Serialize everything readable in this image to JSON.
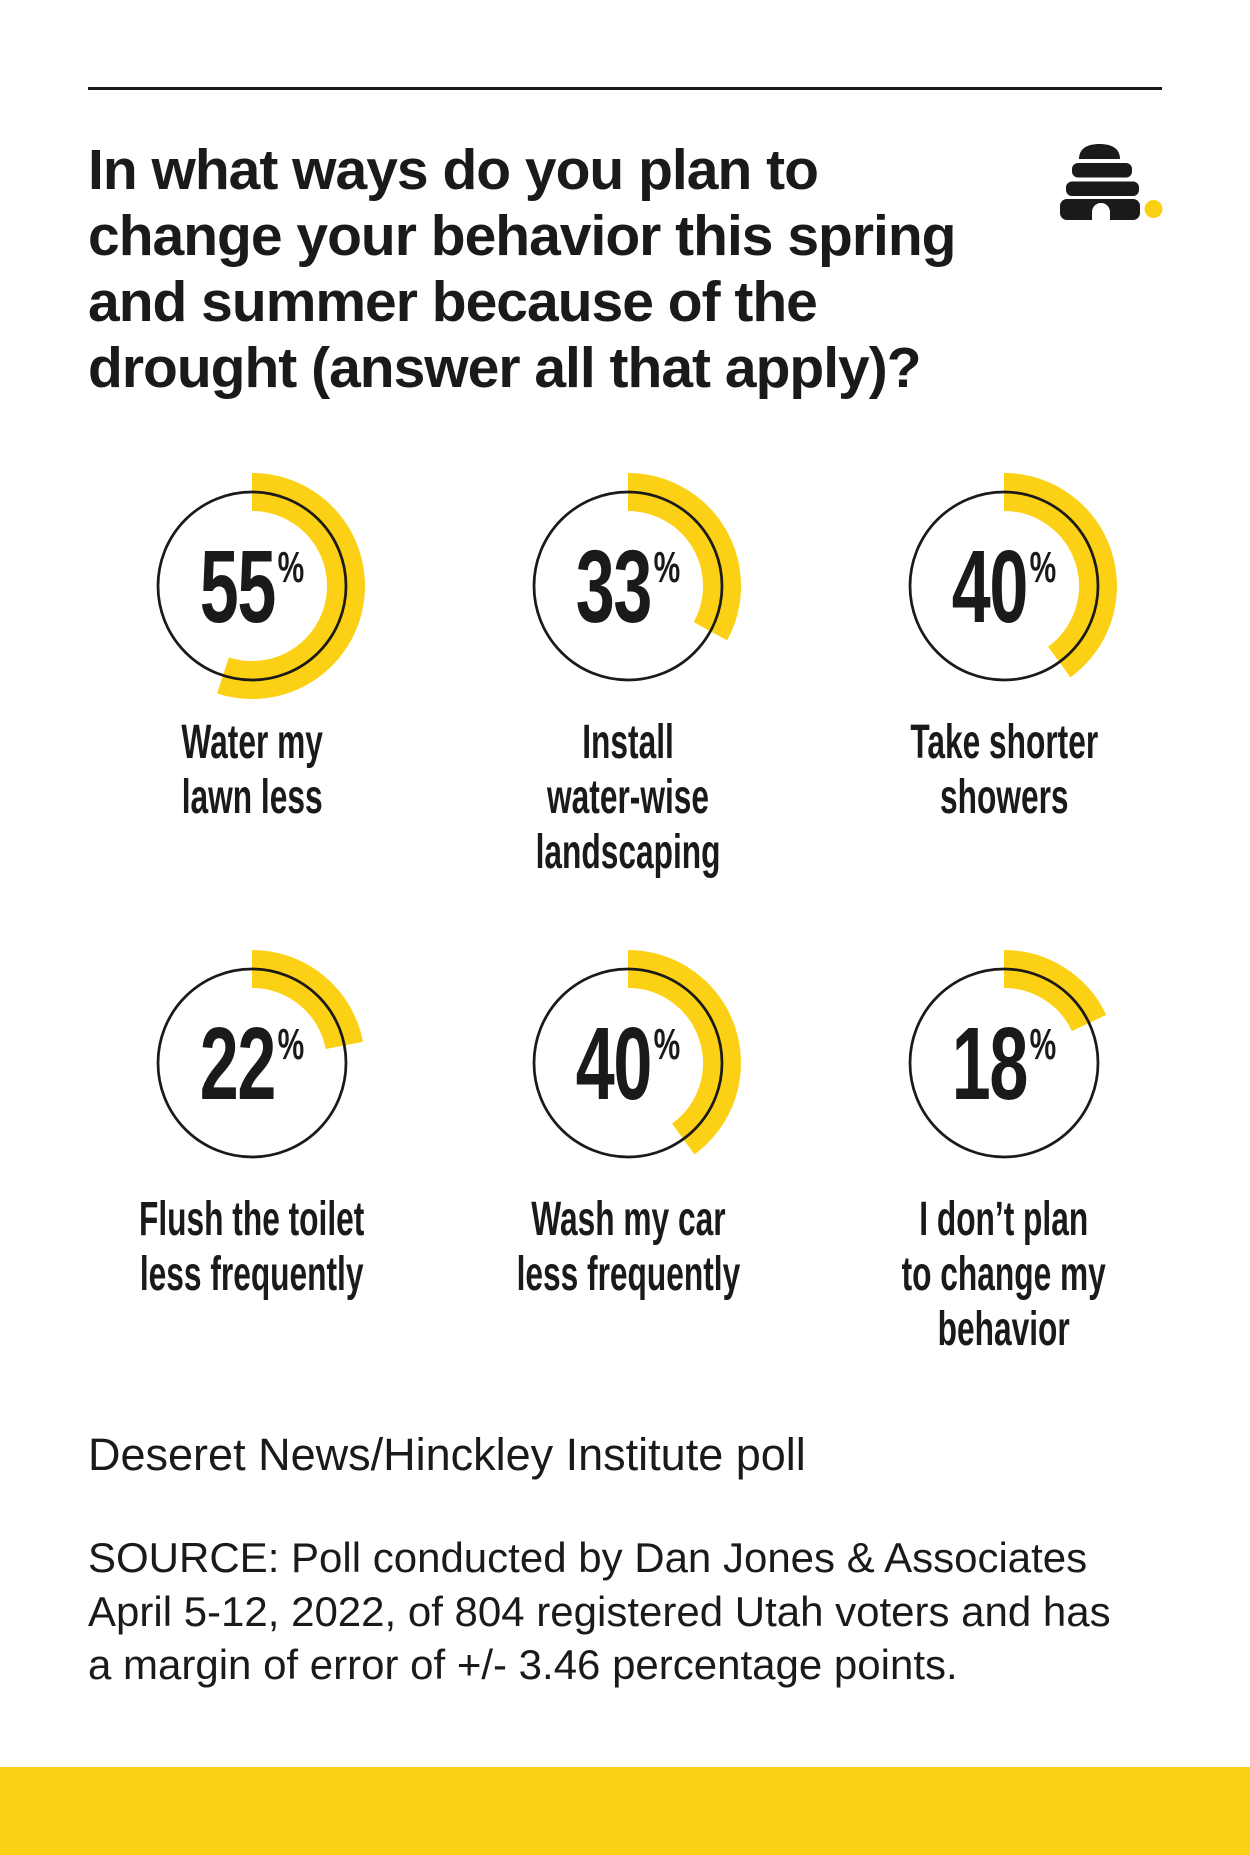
{
  "colors": {
    "accent_yellow": "#FCD015",
    "ink": "#1A1A1A",
    "background": "#FFFFFF"
  },
  "header": {
    "title": "In what ways do you plan to change your behavior this spring and summer because of the drought (answer all that apply)?",
    "title_lines": [
      "In what ways do you plan to",
      "change your behavior this spring",
      "and summer because of the",
      "drought (answer all that apply)?"
    ],
    "logo": "deseret-news-beehive"
  },
  "chart_data": {
    "type": "donut-gauge",
    "unit": "%",
    "value_range": [
      0,
      100
    ],
    "gauge_style": {
      "start_angle_deg": 0,
      "direction": "clockwise",
      "ring_color": "#FCD015",
      "outline_color": "#1A1A1A"
    },
    "items": [
      {
        "value": 55,
        "label": "Water my lawn less",
        "label_lines": [
          "Water my",
          "lawn less"
        ]
      },
      {
        "value": 33,
        "label": "Install water-wise landscaping",
        "label_lines": [
          "Install",
          "water-wise",
          "landscaping"
        ]
      },
      {
        "value": 40,
        "label": "Take shorter showers",
        "label_lines": [
          "Take shorter",
          "showers"
        ]
      },
      {
        "value": 22,
        "label": "Flush the toilet less frequently",
        "label_lines": [
          "Flush the toilet",
          "less frequently"
        ]
      },
      {
        "value": 40,
        "label": "Wash my car less frequently",
        "label_lines": [
          "Wash my car",
          "less frequently"
        ]
      },
      {
        "value": 18,
        "label": "I don’t plan to change my behavior",
        "label_lines": [
          "I don’t plan",
          "to change my",
          "behavior"
        ]
      }
    ],
    "title": "In what ways do you plan to change your behavior this spring and summer because of the drought (answer all that apply)?",
    "legend": "none",
    "grid": "off"
  },
  "footer": {
    "poll_name": "Deseret News/Hinckley Institute poll",
    "source": "SOURCE: Poll conducted by Dan Jones & Associates April 5-12, 2022, of 804 registered Utah voters and has a margin of error of +/- 3.46 percentage points.",
    "source_lines": [
      "SOURCE: Poll conducted by Dan Jones & Associates",
      "April 5-12, 2022, of 804 registered Utah voters and has",
      "a margin of error of +/- 3.46 percentage points."
    ]
  }
}
